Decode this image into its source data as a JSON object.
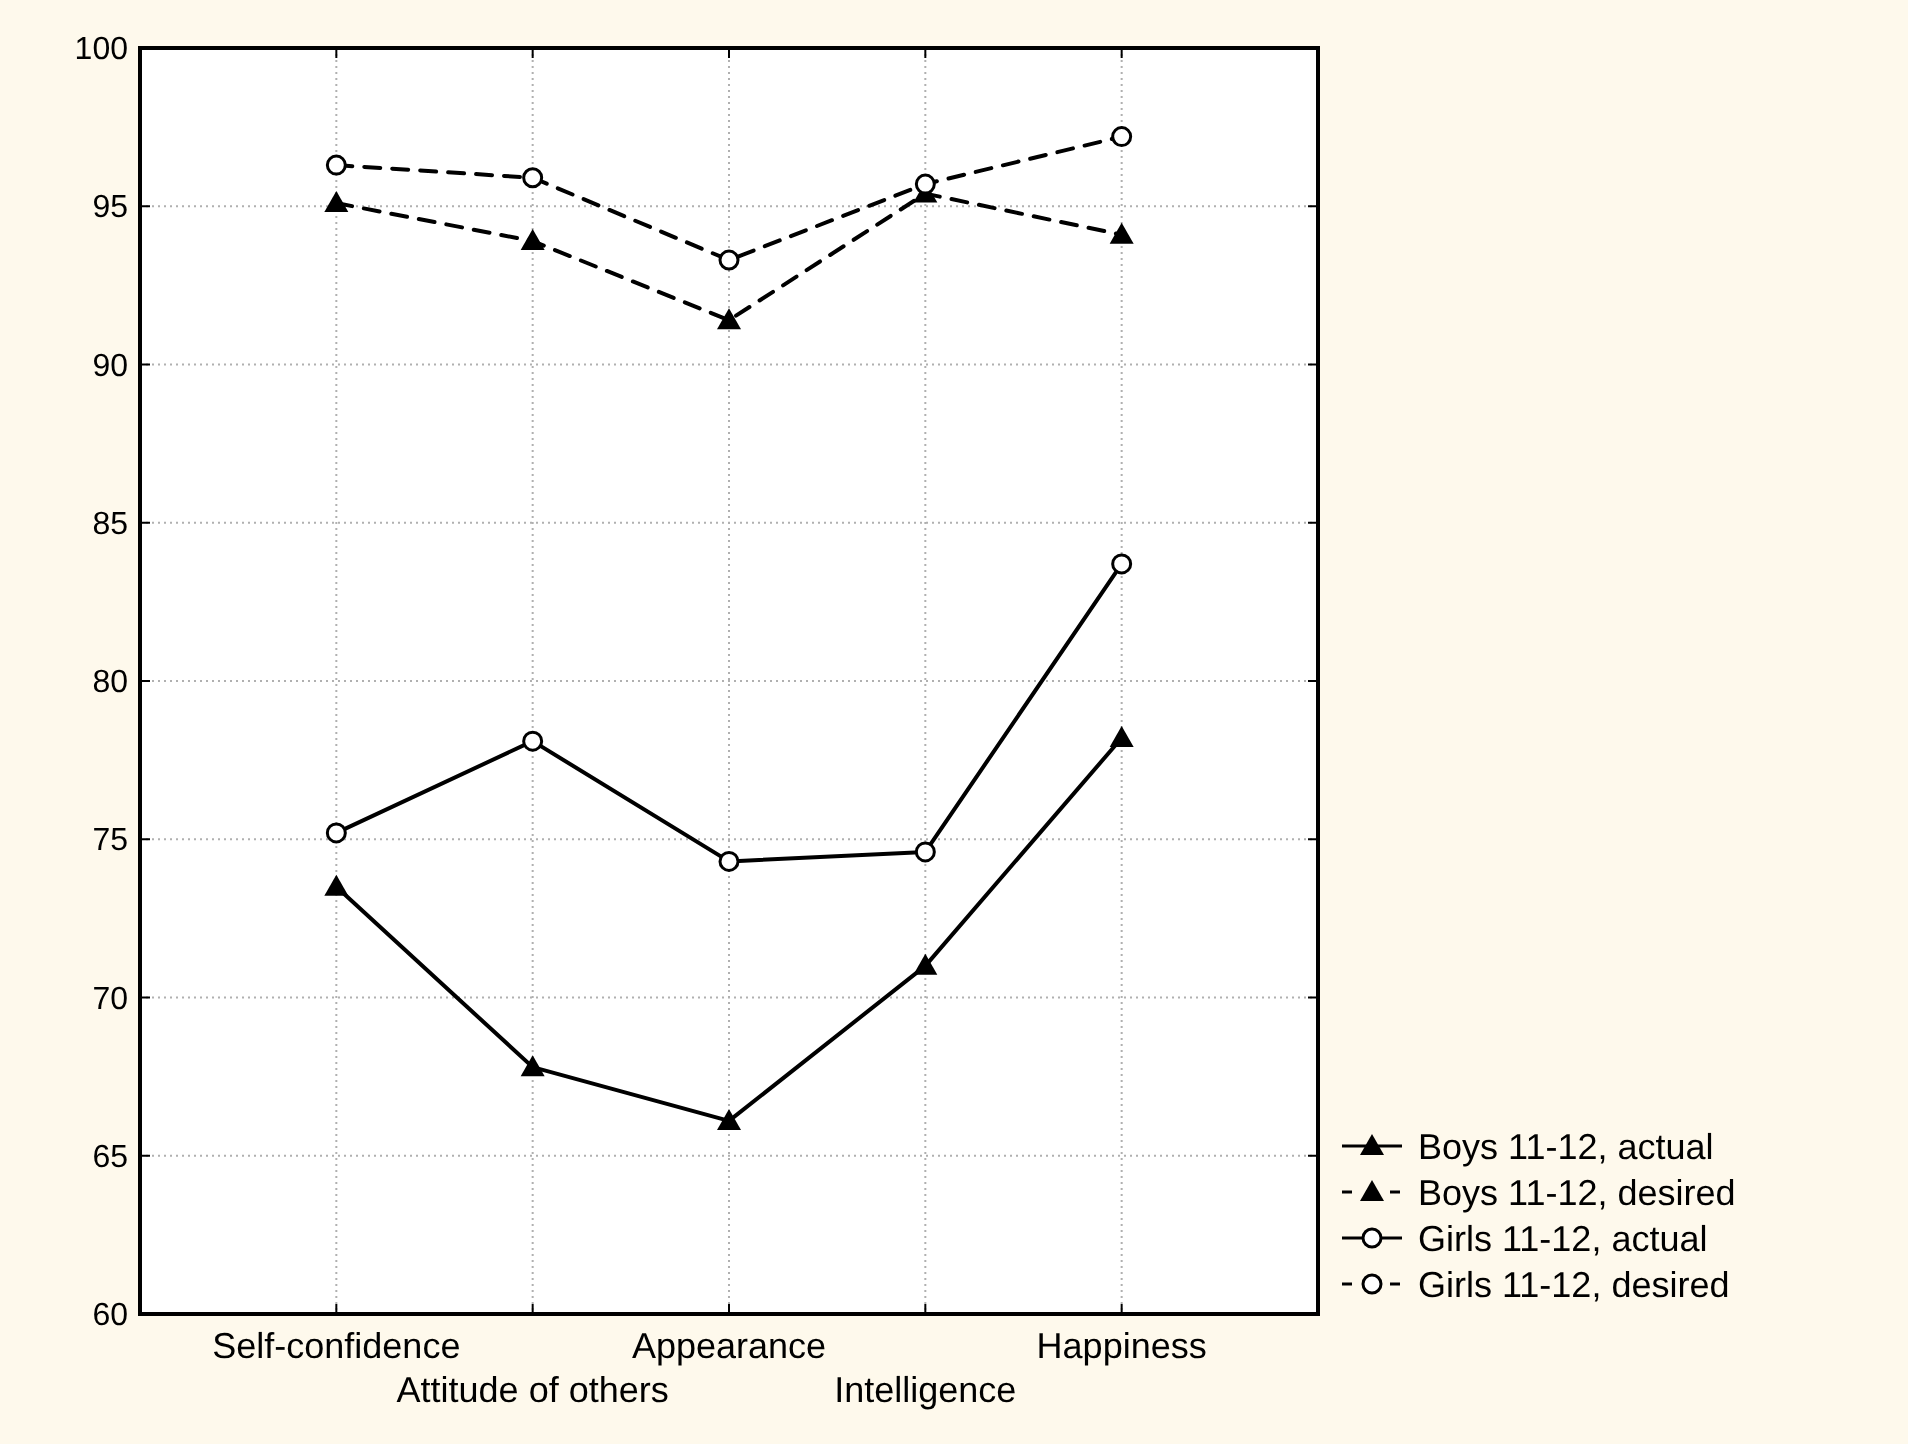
{
  "chart_data": {
    "type": "line",
    "categories": [
      "Self-confidence",
      "Attitude of others",
      "Appearance",
      "Intelligence",
      "Happiness"
    ],
    "ylim": [
      60,
      100
    ],
    "yticks": [
      60,
      65,
      70,
      75,
      80,
      85,
      90,
      95,
      100
    ],
    "grid": true,
    "legend": "bottom right",
    "series": [
      {
        "name": "Boys 11-12, actual",
        "color": "#000000",
        "marker": "triangle",
        "line_style": "solid",
        "values": [
          73.5,
          67.8,
          66.1,
          71.0,
          78.2
        ]
      },
      {
        "name": "Boys 11-12, desired",
        "color": "#000000",
        "marker": "triangle",
        "line_style": "dashed",
        "values": [
          95.1,
          93.9,
          91.4,
          95.4,
          94.1
        ]
      },
      {
        "name": "Girls 11-12, actual",
        "color": "#000000",
        "marker": "circle",
        "line_style": "solid",
        "values": [
          75.2,
          78.1,
          74.3,
          74.6,
          83.7
        ]
      },
      {
        "name": "Girls 11-12, desired",
        "color": "#000000",
        "marker": "circle",
        "line_style": "dashed",
        "values": [
          96.3,
          95.9,
          93.3,
          95.7,
          97.2
        ]
      }
    ]
  }
}
